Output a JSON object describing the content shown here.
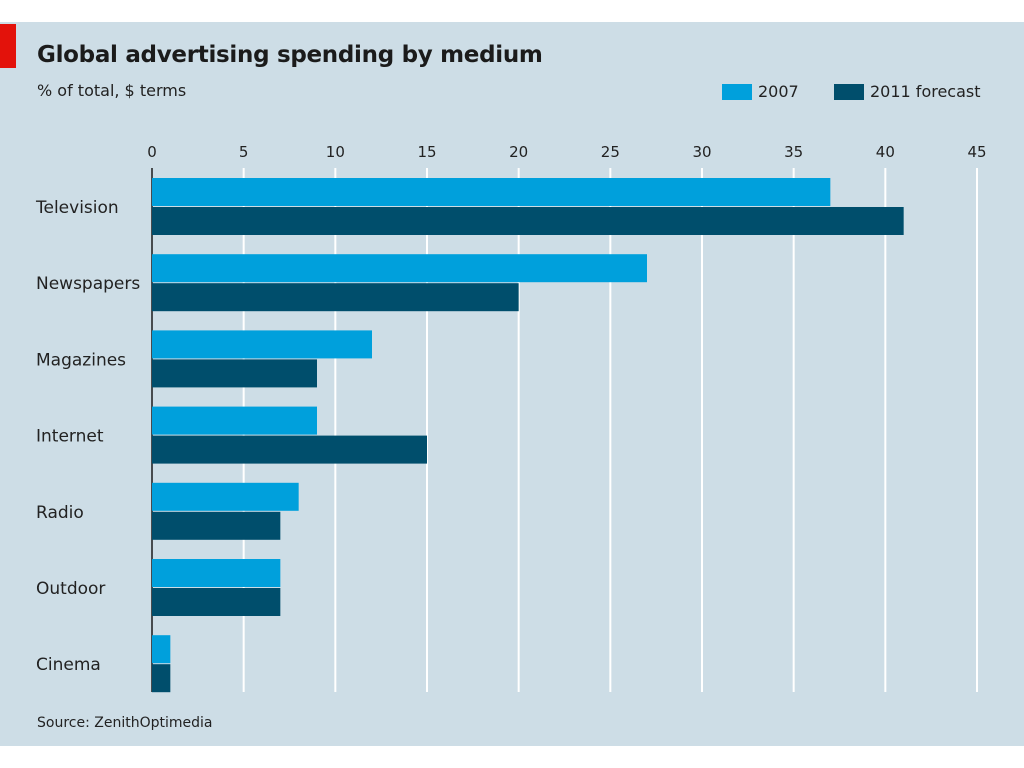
{
  "header": {
    "title": "Global advertising spending by medium",
    "subtitle": "% of total, $ terms"
  },
  "footer": {
    "source": "Source: ZenithOptimedia"
  },
  "colors": {
    "background": "#cddde6",
    "accent_red": "#e3120b",
    "series_2007": "#00a0dc",
    "series_2011": "#004e6c",
    "grid": "#ffffff"
  },
  "chart_data": {
    "type": "bar",
    "orientation": "horizontal",
    "title": "Global advertising spending by medium",
    "subtitle": "% of total, $ terms",
    "xlabel": "",
    "ylabel": "",
    "xlim": [
      0,
      45
    ],
    "ticks": [
      0,
      5,
      10,
      15,
      20,
      25,
      30,
      35,
      40,
      45
    ],
    "grid": true,
    "legend_position": "top-right",
    "categories": [
      "Television",
      "Newspapers",
      "Magazines",
      "Internet",
      "Radio",
      "Outdoor",
      "Cinema"
    ],
    "series": [
      {
        "name": "2007",
        "color": "#00a0dc",
        "values": [
          37,
          27,
          12,
          9,
          8,
          7,
          1
        ]
      },
      {
        "name": "2011 forecast",
        "color": "#004e6c",
        "values": [
          41,
          20,
          9,
          15,
          7,
          7,
          1
        ]
      }
    ]
  }
}
